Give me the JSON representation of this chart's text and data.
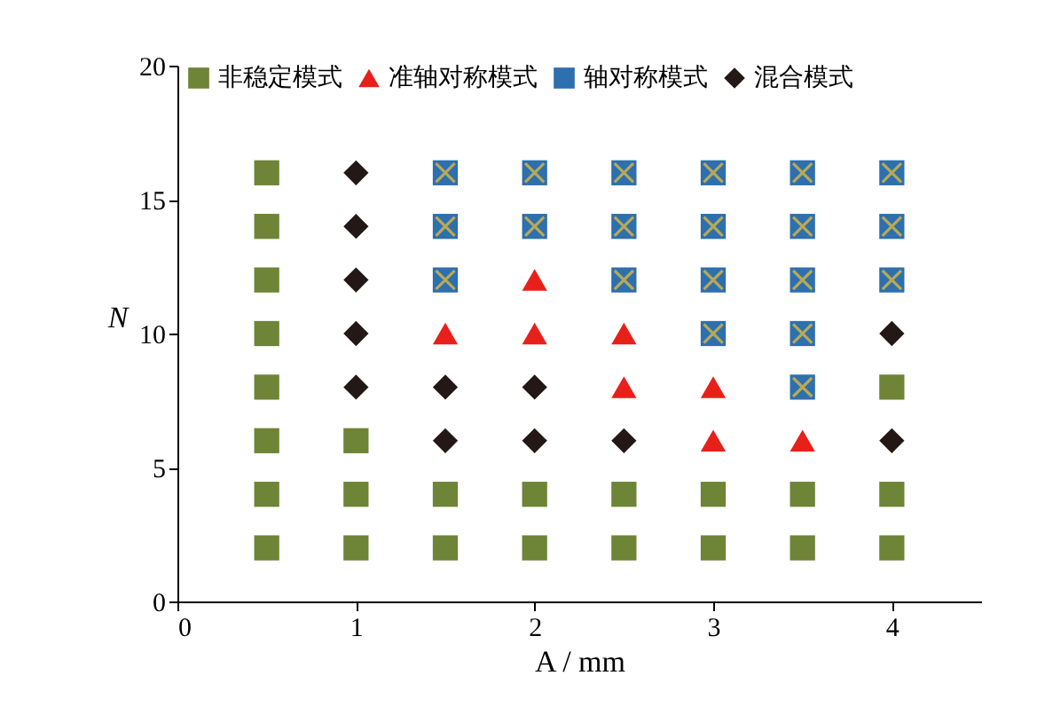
{
  "chart_data": {
    "type": "scatter",
    "xlabel": "A / mm",
    "ylabel": "N",
    "xlim": [
      0,
      4.5
    ],
    "xticks": [
      0,
      1,
      2,
      3,
      4
    ],
    "ylim": [
      0,
      20
    ],
    "yticks": [
      0,
      5,
      10,
      15,
      20
    ],
    "grid": false,
    "legend": "top",
    "series": [
      {
        "name": "非稳定模式",
        "color": "#6e8437",
        "marker": "square",
        "x": [
          0.5,
          0.5,
          0.5,
          0.5,
          0.5,
          0.5,
          0.5,
          0.5,
          1,
          1,
          1,
          1.5,
          1.5,
          2,
          2,
          2.5,
          2.5,
          3,
          3,
          3.5,
          3.5,
          4,
          4,
          4
        ],
        "values": [
          2,
          4,
          6,
          8,
          10,
          12,
          14,
          16,
          2,
          4,
          6,
          2,
          4,
          2,
          4,
          2,
          4,
          2,
          4,
          2,
          4,
          2,
          4,
          8
        ]
      },
      {
        "name": "准轴对称模式",
        "color": "#e8201a",
        "marker": "triangle",
        "x": [
          1.5,
          2,
          2,
          2.5,
          2.5,
          3,
          3,
          3.5
        ],
        "values": [
          10,
          10,
          12,
          8,
          10,
          6,
          8,
          6
        ]
      },
      {
        "name": "轴对称模式",
        "color": "#2e6fae",
        "marker": "square",
        "x": [
          1.5,
          1.5,
          1.5,
          2,
          2,
          2.5,
          2.5,
          2.5,
          3,
          3,
          3,
          3,
          3.5,
          3.5,
          3.5,
          3.5,
          3.5,
          4,
          4,
          4
        ],
        "values": [
          12,
          14,
          16,
          14,
          16,
          12,
          14,
          16,
          10,
          12,
          14,
          16,
          8,
          10,
          12,
          14,
          16,
          12,
          14,
          16
        ]
      },
      {
        "name": "混合模式",
        "color": "#231815",
        "marker": "diamond",
        "x": [
          1,
          1,
          1,
          1,
          1,
          1.5,
          1.5,
          2,
          2,
          2.5,
          4,
          4
        ],
        "values": [
          8,
          10,
          12,
          14,
          16,
          6,
          8,
          6,
          8,
          6,
          6,
          10
        ]
      }
    ]
  }
}
